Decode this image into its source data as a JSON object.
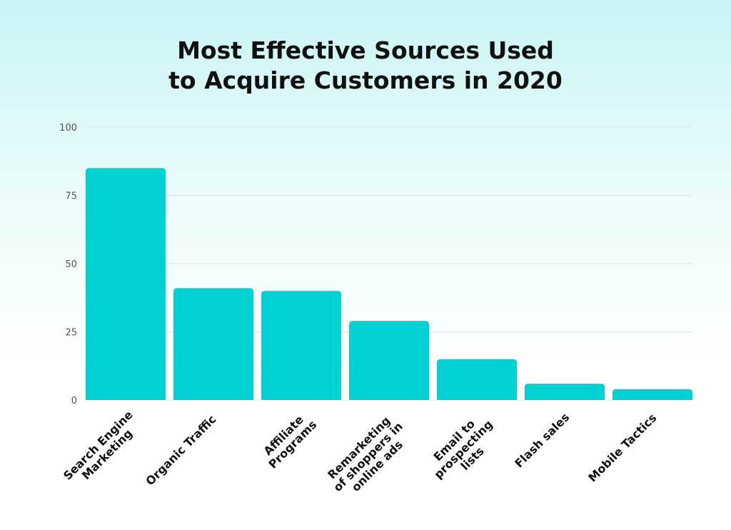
{
  "chart_data": {
    "type": "bar",
    "title_lines": [
      "Most Effective Sources Used",
      "to Acquire Customers in 2020"
    ],
    "categories": [
      [
        "Search Engine",
        "Marketing"
      ],
      [
        "Organic Traffic"
      ],
      [
        "Affiliate",
        "Programs"
      ],
      [
        "Remarketing",
        "of shoppers in",
        "online ads"
      ],
      [
        "Email to",
        "prospecting",
        "lists"
      ],
      [
        "Flash sales"
      ],
      [
        "Mobile Tactics"
      ]
    ],
    "values": [
      85,
      41,
      40,
      29,
      15,
      6,
      4
    ],
    "ylim": [
      0,
      100
    ],
    "yticks": [
      0,
      25,
      50,
      75,
      100
    ],
    "grid": true,
    "bar_color": "#00d2d3",
    "grid_color": "#d6e6e6"
  }
}
